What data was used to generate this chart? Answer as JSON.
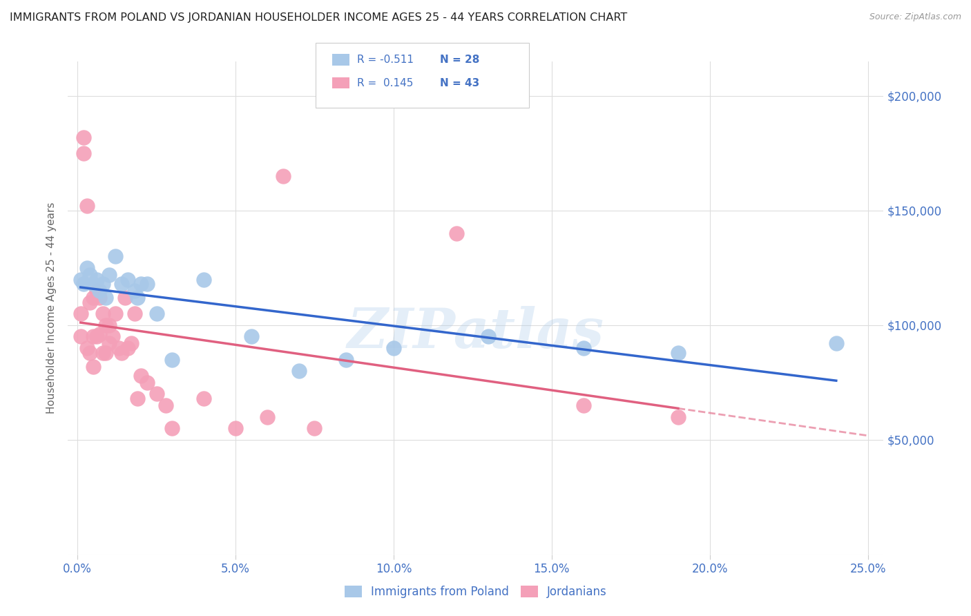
{
  "title": "IMMIGRANTS FROM POLAND VS JORDANIAN HOUSEHOLDER INCOME AGES 25 - 44 YEARS CORRELATION CHART",
  "source": "Source: ZipAtlas.com",
  "ylabel": "Householder Income Ages 25 - 44 years",
  "legend_label1": "Immigrants from Poland",
  "legend_label2": "Jordanians",
  "legend_R1": "R = -0.511",
  "legend_N1": "N = 28",
  "legend_R2": "R =  0.145",
  "legend_N2": "N = 43",
  "color_blue": "#a8c8e8",
  "color_pink": "#f4a0b8",
  "color_blue_line": "#3366cc",
  "color_pink_line": "#e06080",
  "color_blue_text": "#4472c4",
  "watermark": "ZIPatlas",
  "blue_scatter_x": [
    0.001,
    0.002,
    0.003,
    0.004,
    0.005,
    0.006,
    0.007,
    0.008,
    0.009,
    0.01,
    0.012,
    0.014,
    0.016,
    0.018,
    0.019,
    0.02,
    0.022,
    0.025,
    0.03,
    0.04,
    0.055,
    0.07,
    0.085,
    0.1,
    0.13,
    0.16,
    0.19,
    0.24
  ],
  "blue_scatter_y": [
    120000,
    118000,
    125000,
    122000,
    118000,
    120000,
    115000,
    118000,
    112000,
    122000,
    130000,
    118000,
    120000,
    115000,
    112000,
    118000,
    118000,
    105000,
    85000,
    120000,
    95000,
    80000,
    85000,
    90000,
    95000,
    90000,
    88000,
    92000
  ],
  "pink_scatter_x": [
    0.001,
    0.001,
    0.002,
    0.002,
    0.003,
    0.003,
    0.004,
    0.004,
    0.005,
    0.005,
    0.005,
    0.006,
    0.006,
    0.007,
    0.007,
    0.008,
    0.008,
    0.009,
    0.009,
    0.01,
    0.01,
    0.011,
    0.012,
    0.013,
    0.014,
    0.015,
    0.016,
    0.017,
    0.018,
    0.019,
    0.02,
    0.022,
    0.025,
    0.028,
    0.03,
    0.04,
    0.05,
    0.06,
    0.065,
    0.075,
    0.12,
    0.16,
    0.19
  ],
  "pink_scatter_y": [
    105000,
    95000,
    175000,
    182000,
    152000,
    90000,
    110000,
    88000,
    112000,
    95000,
    82000,
    115000,
    95000,
    112000,
    96000,
    105000,
    88000,
    100000,
    88000,
    92000,
    100000,
    95000,
    105000,
    90000,
    88000,
    112000,
    90000,
    92000,
    105000,
    68000,
    78000,
    75000,
    70000,
    65000,
    55000,
    68000,
    55000,
    60000,
    165000,
    55000,
    140000,
    65000,
    60000
  ],
  "xlim": [
    -0.003,
    0.255
  ],
  "ylim": [
    0,
    215000
  ],
  "x_ticks": [
    0.0,
    0.05,
    0.1,
    0.15,
    0.2,
    0.25
  ],
  "x_tick_labels": [
    "0.0%",
    "5.0%",
    "10.0%",
    "15.0%",
    "20.0%",
    "25.0%"
  ],
  "y_ticks": [
    0,
    50000,
    100000,
    150000,
    200000
  ],
  "y_tick_labels": [
    "",
    "$50,000",
    "$100,000",
    "$150,000",
    "$200,000"
  ]
}
